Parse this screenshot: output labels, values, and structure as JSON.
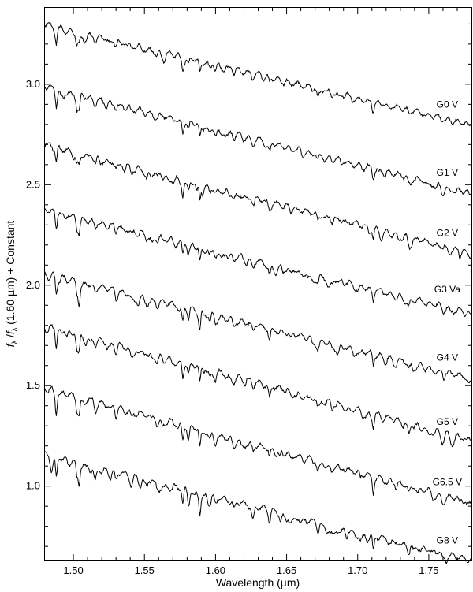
{
  "chart_data": {
    "type": "line",
    "title": "",
    "xlabel": "Wavelength (µm)",
    "ylabel": "f_λ / f_λ (1.60 µm) + Constant",
    "ylabel_parts": {
      "f": "f",
      "lambda": "λ",
      "slash": " /",
      "suffix": " (1.60 µm) + Constant"
    },
    "xlim": [
      1.48,
      1.78
    ],
    "ylim": [
      0.63,
      3.38
    ],
    "x_ticks": [
      1.5,
      1.55,
      1.6,
      1.65,
      1.7,
      1.75
    ],
    "x_tick_labels": [
      "1.50",
      "1.55",
      "1.60",
      "1.65",
      "1.70",
      "1.75"
    ],
    "y_ticks": [
      1.0,
      1.5,
      2.0,
      2.5,
      3.0
    ],
    "y_tick_labels": [
      "1.0",
      "1.5",
      "2.0",
      "2.5",
      "3.0"
    ],
    "grid": false,
    "legend": "none",
    "x_sample_step": 0.0005,
    "absorption_lines": [
      {
        "x": 1.488,
        "depth": 0.09,
        "width": 0.0006
      },
      {
        "x": 1.5025,
        "depth": 0.06,
        "width": 0.0006
      },
      {
        "x": 1.504,
        "depth": 0.08,
        "width": 0.0006
      },
      {
        "x": 1.5155,
        "depth": 0.03,
        "width": 0.0007
      },
      {
        "x": 1.53,
        "depth": 0.03,
        "width": 0.0007
      },
      {
        "x": 1.541,
        "depth": 0.025,
        "width": 0.0008
      },
      {
        "x": 1.559,
        "depth": 0.025,
        "width": 0.0008
      },
      {
        "x": 1.577,
        "depth": 0.07,
        "width": 0.0006
      },
      {
        "x": 1.581,
        "depth": 0.05,
        "width": 0.0007
      },
      {
        "x": 1.589,
        "depth": 0.08,
        "width": 0.0006
      },
      {
        "x": 1.596,
        "depth": 0.035,
        "width": 0.0008
      },
      {
        "x": 1.6,
        "depth": 0.03,
        "width": 0.0008
      },
      {
        "x": 1.613,
        "depth": 0.03,
        "width": 0.0008
      },
      {
        "x": 1.6265,
        "depth": 0.03,
        "width": 0.0008
      },
      {
        "x": 1.638,
        "depth": 0.045,
        "width": 0.0007
      },
      {
        "x": 1.653,
        "depth": 0.025,
        "width": 0.0008
      },
      {
        "x": 1.672,
        "depth": 0.035,
        "width": 0.0008
      },
      {
        "x": 1.682,
        "depth": 0.025,
        "width": 0.0008
      },
      {
        "x": 1.711,
        "depth": 0.06,
        "width": 0.0006
      },
      {
        "x": 1.736,
        "depth": 0.035,
        "width": 0.0008
      },
      {
        "x": 1.76,
        "depth": 0.02,
        "width": 0.0008
      }
    ],
    "series": [
      {
        "name": "G0 V",
        "start": 3.3,
        "end": 2.8,
        "line_strength": 0.65,
        "seed": 11,
        "label_x": 1.763,
        "label_y": 2.9
      },
      {
        "name": "G1 V",
        "start": 2.99,
        "end": 2.46,
        "line_strength": 0.75,
        "seed": 23,
        "label_x": 1.763,
        "label_y": 2.56
      },
      {
        "name": "G2 V",
        "start": 2.7,
        "end": 2.16,
        "line_strength": 0.85,
        "seed": 37,
        "label_x": 1.763,
        "label_y": 2.26
      },
      {
        "name": "G3 Va",
        "start": 2.38,
        "end": 1.86,
        "line_strength": 0.9,
        "seed": 41,
        "label_x": 1.763,
        "label_y": 1.98
      },
      {
        "name": "G4 V",
        "start": 2.06,
        "end": 1.54,
        "line_strength": 0.95,
        "seed": 53,
        "label_x": 1.763,
        "label_y": 1.64
      },
      {
        "name": "G5 V",
        "start": 1.8,
        "end": 1.23,
        "line_strength": 1.0,
        "seed": 67,
        "label_x": 1.763,
        "label_y": 1.32
      },
      {
        "name": "G6.5 V",
        "start": 1.49,
        "end": 0.92,
        "line_strength": 1.1,
        "seed": 79,
        "label_x": 1.763,
        "label_y": 1.02
      },
      {
        "name": "G8 V",
        "start": 1.16,
        "end": 0.63,
        "line_strength": 1.2,
        "seed": 83,
        "label_x": 1.763,
        "label_y": 0.73
      }
    ]
  }
}
